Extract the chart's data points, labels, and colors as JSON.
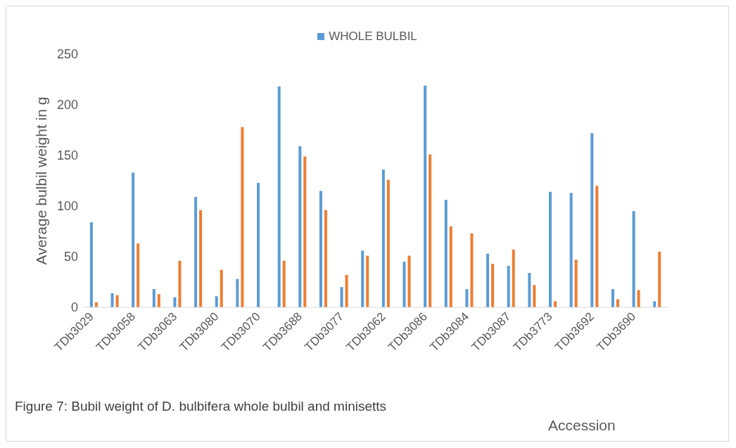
{
  "chart_data": {
    "type": "bar",
    "xlabel": "Accession",
    "ylabel": "Average bulbil weight in g",
    "categories": [
      "TDb3029",
      null,
      "TDb3058",
      null,
      "TDb3063",
      null,
      "TDb3080",
      null,
      "TDb3070",
      null,
      "TDb3688",
      null,
      "TDb3077",
      null,
      "TDb3062",
      null,
      "TDb3086",
      null,
      "TDb3084",
      null,
      "TDb3087",
      null,
      "TDb3773",
      null,
      "TDb3692",
      null,
      "TDb3690",
      null
    ],
    "series": [
      {
        "name": "WHOLE BULBIL",
        "color": "#5b9bd5",
        "values": [
          84,
          14,
          133,
          18,
          10,
          109,
          11,
          28,
          123,
          218,
          159,
          115,
          20,
          56,
          136,
          45,
          219,
          106,
          18,
          53,
          41,
          34,
          114,
          113,
          172,
          18,
          95,
          6
        ]
      },
      {
        "color": "#ed7d31",
        "values": [
          5,
          12,
          63,
          13,
          46,
          96,
          37,
          178,
          null,
          46,
          149,
          96,
          32,
          51,
          126,
          51,
          151,
          80,
          73,
          43,
          57,
          22,
          6,
          47,
          120,
          8,
          17,
          55
        ]
      }
    ],
    "ylim": [
      0,
      250
    ],
    "yticks": [
      0,
      50,
      100,
      150,
      200,
      250
    ],
    "grid": false,
    "legend": "top",
    "annotations": [
      "Figure 7: Bubil weight of D. bulbifera whole bulbil and minisetts"
    ]
  }
}
